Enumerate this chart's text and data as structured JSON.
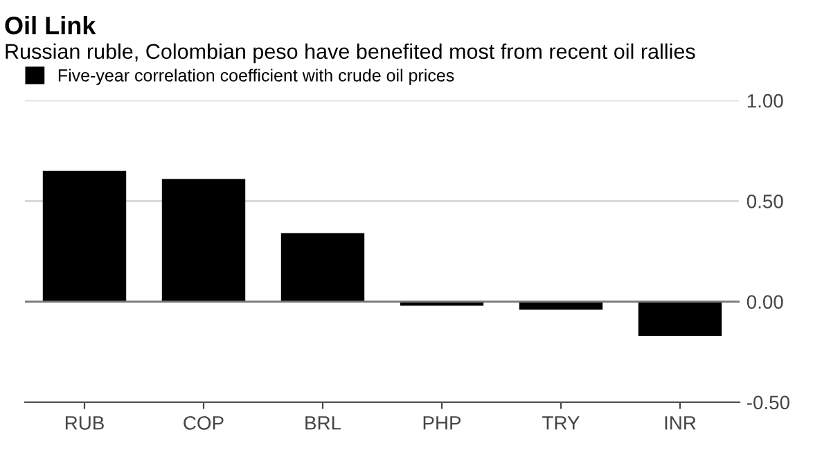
{
  "chart_data": {
    "type": "bar",
    "title": "Oil Link",
    "subtitle": "Russian ruble, Colombian peso have benefited most from recent oil rallies",
    "categories": [
      "RUB",
      "COP",
      "BRL",
      "PHP",
      "TRY",
      "INR"
    ],
    "series": [
      {
        "name": "Five-year correlation coefficient with crude oil prices",
        "color": "#000000",
        "values": [
          0.65,
          0.61,
          0.34,
          -0.02,
          -0.04,
          -0.17
        ]
      }
    ],
    "ylim": [
      -0.5,
      1.0
    ],
    "yticks": [
      {
        "value": -0.5,
        "label": "-0.50"
      },
      {
        "value": 0,
        "label": "0.00"
      },
      {
        "value": 0.5,
        "label": "0.50"
      },
      {
        "value": 1.0,
        "label": "1.00"
      }
    ],
    "ref_lines": [
      {
        "axis": "y",
        "value": 0,
        "label": null,
        "color": "#777777"
      }
    ],
    "grid": "y",
    "legend": "top left"
  }
}
